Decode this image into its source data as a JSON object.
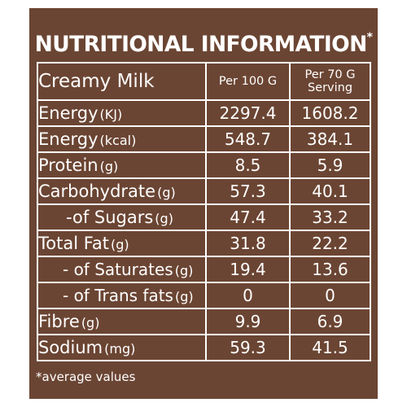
{
  "title": "NUTRITIONAL INFORMATION",
  "title_mark": "*",
  "product": "Creamy Milk",
  "columns": {
    "per100": "Per 100 G",
    "serving_line1": "Per 70 G",
    "serving_line2": "Serving"
  },
  "rows": [
    {
      "name": "Energy",
      "unit": "(KJ)",
      "per100": "2297.4",
      "serving": "1608.2"
    },
    {
      "name": "Energy",
      "unit": "(kcal)",
      "per100": "548.7",
      "serving": "384.1"
    },
    {
      "name": "Protein",
      "unit": "(g)",
      "per100": "8.5",
      "serving": "5.9"
    },
    {
      "name": "Carbohydrate",
      "unit": "(g)",
      "per100": "57.3",
      "serving": "40.1"
    },
    {
      "name": "-of Sugars",
      "unit": "(g)",
      "per100": "47.4",
      "serving": "33.2"
    },
    {
      "name": "Total Fat",
      "unit": "(g)",
      "per100": "31.8",
      "serving": "22.2"
    },
    {
      "name": "- of Saturates",
      "unit": "(g)",
      "per100": "19.4",
      "serving": "13.6"
    },
    {
      "name": "- of Trans fats",
      "unit": "(g)",
      "per100": "0",
      "serving": "0"
    },
    {
      "name": "Fibre",
      "unit": "(g)",
      "per100": "9.9",
      "serving": "6.9"
    },
    {
      "name": "Sodium",
      "unit": "(mg)",
      "per100": "59.3",
      "serving": "41.5"
    }
  ],
  "footnote": "*average values",
  "colors": {
    "background": "#6b4533",
    "text": "#ffffff",
    "border": "#ffffff"
  }
}
